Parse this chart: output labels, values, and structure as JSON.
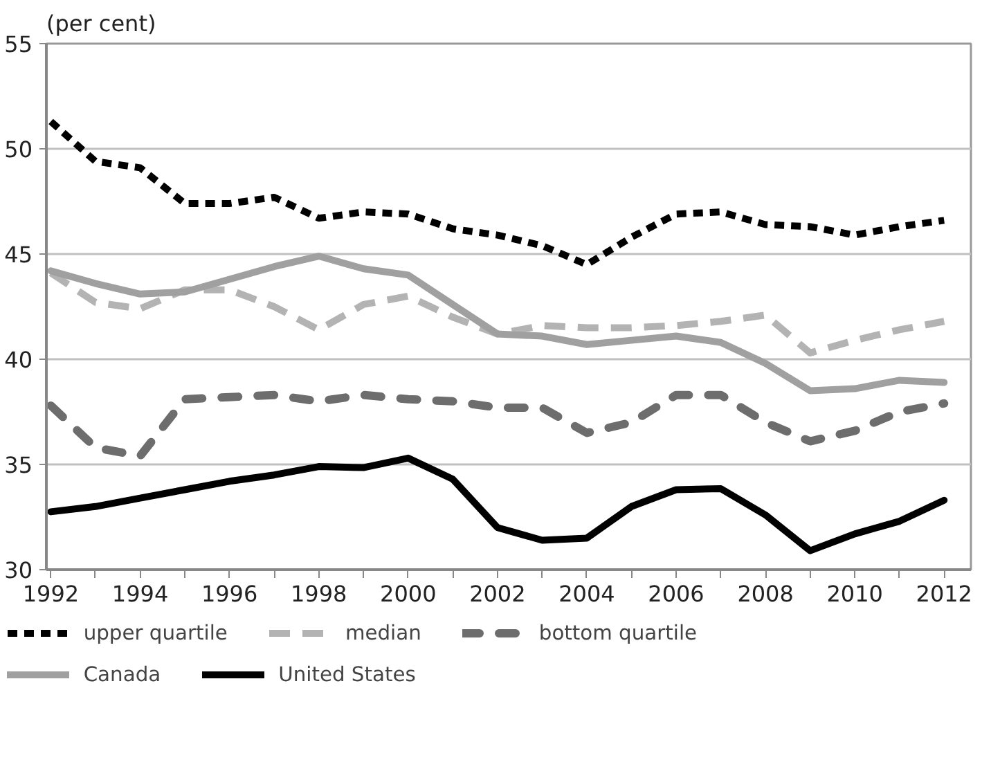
{
  "chart_data": {
    "type": "line",
    "ylabel": "(per cent)",
    "x": [
      1992,
      1993,
      1994,
      1995,
      1996,
      1997,
      1998,
      1999,
      2000,
      2001,
      2002,
      2003,
      2004,
      2005,
      2006,
      2007,
      2008,
      2009,
      2010,
      2011,
      2012
    ],
    "xlim": [
      1991.9,
      2012.6
    ],
    "xticks": [
      1992,
      {
        "value": 1993,
        "label": null
      },
      1994,
      {
        "value": 1995,
        "label": null
      },
      1996,
      {
        "value": 1997,
        "label": null
      },
      1998,
      {
        "value": 1999,
        "label": null
      },
      2000,
      {
        "value": 2001,
        "label": null
      },
      2002,
      {
        "value": 2003,
        "label": null
      },
      2004,
      {
        "value": 2005,
        "label": null
      },
      2006,
      {
        "value": 2007,
        "label": null
      },
      2008,
      {
        "value": 2009,
        "label": null
      },
      2010,
      {
        "value": 2011,
        "label": null
      },
      2012
    ],
    "ylim": [
      30,
      55
    ],
    "yticks": [
      30,
      35,
      40,
      45,
      50,
      55
    ],
    "grid": "y",
    "legend": "bottom",
    "series": [
      {
        "name": "upper quartile",
        "color": "#000000",
        "line_style": "dashed",
        "values": [
          51.3,
          49.4,
          49.1,
          47.4,
          47.4,
          47.7,
          46.7,
          47.0,
          46.9,
          46.2,
          45.9,
          45.4,
          44.5,
          45.8,
          46.9,
          47.0,
          46.4,
          46.3,
          45.9,
          46.3,
          46.6
        ]
      },
      {
        "name": "median",
        "color": "#b3b3b3",
        "line_style": "dashed",
        "values": [
          44.1,
          42.7,
          42.4,
          43.3,
          43.3,
          42.5,
          41.4,
          42.6,
          43.0,
          42.0,
          41.2,
          41.6,
          41.5,
          41.5,
          41.6,
          41.8,
          42.1,
          40.3,
          40.9,
          41.4,
          41.8
        ]
      },
      {
        "name": "bottom quartile",
        "color": "#6d6d6d",
        "line_style": "dashed",
        "values": [
          37.8,
          35.8,
          35.4,
          38.1,
          38.2,
          38.3,
          38.0,
          38.3,
          38.1,
          38.0,
          37.7,
          37.7,
          36.5,
          37.0,
          38.3,
          38.3,
          37.0,
          36.1,
          36.6,
          37.5,
          37.9
        ]
      },
      {
        "name": "Canada",
        "color": "#a0a0a0",
        "line_style": "solid",
        "values": [
          44.2,
          43.6,
          43.1,
          43.2,
          43.8,
          44.4,
          44.9,
          44.3,
          44.0,
          42.6,
          41.2,
          41.1,
          40.7,
          40.9,
          41.1,
          40.8,
          39.8,
          38.5,
          38.6,
          39.0,
          38.9
        ]
      },
      {
        "name": "United States",
        "color": "#000000",
        "line_style": "solid",
        "values": [
          32.75,
          33.0,
          33.4,
          33.8,
          34.2,
          34.5,
          34.9,
          34.85,
          35.3,
          34.3,
          32.0,
          31.4,
          31.5,
          33.0,
          33.8,
          33.85,
          32.6,
          30.9,
          31.7,
          32.3,
          33.3
        ]
      }
    ]
  }
}
